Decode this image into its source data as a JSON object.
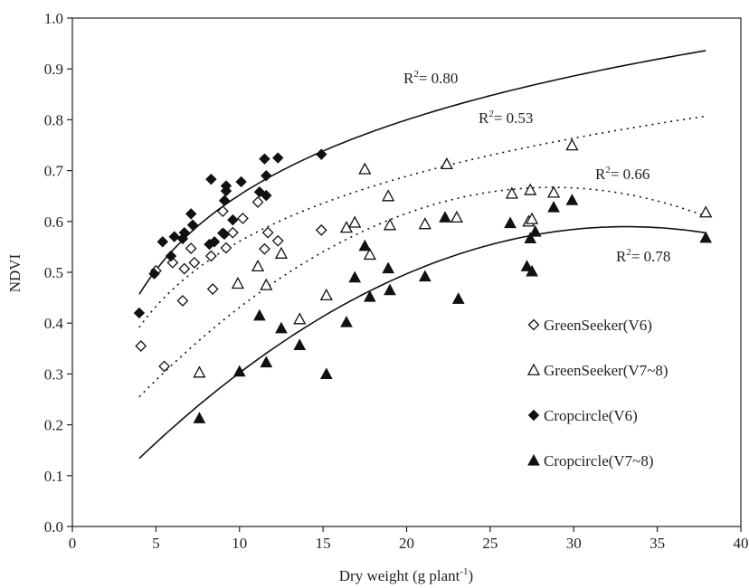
{
  "chart_data": {
    "type": "scatter",
    "xlabel": "Dry weight (g plant",
    "xlabel_sup": "-1",
    "xlabel_close": ")",
    "ylabel": "NDVI",
    "xlim": [
      0,
      40
    ],
    "ylim": [
      0.0,
      1.0
    ],
    "xticks": [
      "0",
      "5",
      "10",
      "15",
      "20",
      "25",
      "30",
      "35",
      "40"
    ],
    "yticks": [
      "0.0",
      "0.1",
      "0.2",
      "0.3",
      "0.4",
      "0.5",
      "0.6",
      "0.7",
      "0.8",
      "0.9",
      "1.0"
    ],
    "grid": false,
    "legend_position": "right",
    "series": [
      {
        "name": "GreenSeeker(V6)",
        "marker": "diamond-open",
        "points": [
          [
            4.1,
            0.355
          ],
          [
            5.0,
            0.503
          ],
          [
            5.5,
            0.315
          ],
          [
            6.0,
            0.519
          ],
          [
            6.6,
            0.444
          ],
          [
            6.7,
            0.507
          ],
          [
            7.1,
            0.547
          ],
          [
            7.3,
            0.519
          ],
          [
            8.3,
            0.532
          ],
          [
            8.4,
            0.467
          ],
          [
            9.0,
            0.62
          ],
          [
            9.2,
            0.548
          ],
          [
            9.6,
            0.578
          ],
          [
            10.2,
            0.606
          ],
          [
            11.1,
            0.638
          ],
          [
            11.5,
            0.546
          ],
          [
            11.7,
            0.578
          ],
          [
            12.3,
            0.562
          ],
          [
            14.9,
            0.583
          ]
        ],
        "fit": {
          "r2_label": "R",
          "r2_sup": "2",
          "r2_value": "= 0.53"
        }
      },
      {
        "name": "GreenSeeker(V7~8)",
        "marker": "triangle-open",
        "points": [
          [
            7.6,
            0.303
          ],
          [
            9.9,
            0.478
          ],
          [
            11.1,
            0.512
          ],
          [
            11.6,
            0.475
          ],
          [
            12.5,
            0.537
          ],
          [
            13.6,
            0.408
          ],
          [
            15.2,
            0.455
          ],
          [
            16.4,
            0.588
          ],
          [
            16.9,
            0.598
          ],
          [
            17.5,
            0.703
          ],
          [
            17.8,
            0.535
          ],
          [
            18.9,
            0.65
          ],
          [
            19.0,
            0.593
          ],
          [
            21.1,
            0.595
          ],
          [
            22.4,
            0.713
          ],
          [
            23.0,
            0.608
          ],
          [
            26.3,
            0.655
          ],
          [
            27.3,
            0.6
          ],
          [
            27.4,
            0.662
          ],
          [
            27.5,
            0.605
          ],
          [
            28.8,
            0.657
          ],
          [
            29.9,
            0.75
          ],
          [
            37.9,
            0.618
          ]
        ],
        "fit": {
          "r2_label": "R",
          "r2_sup": "2",
          "r2_value": "= 0.66"
        }
      },
      {
        "name": "Cropcircle(V6)",
        "marker": "diamond-filled",
        "points": [
          [
            4.0,
            0.42
          ],
          [
            4.9,
            0.497
          ],
          [
            5.4,
            0.56
          ],
          [
            5.9,
            0.532
          ],
          [
            6.1,
            0.57
          ],
          [
            6.6,
            0.566
          ],
          [
            6.7,
            0.578
          ],
          [
            7.1,
            0.615
          ],
          [
            7.2,
            0.593
          ],
          [
            8.2,
            0.555
          ],
          [
            8.3,
            0.683
          ],
          [
            8.5,
            0.56
          ],
          [
            9.0,
            0.577
          ],
          [
            9.1,
            0.575
          ],
          [
            9.1,
            0.641
          ],
          [
            9.2,
            0.67
          ],
          [
            9.2,
            0.66
          ],
          [
            9.6,
            0.603
          ],
          [
            10.1,
            0.678
          ],
          [
            11.2,
            0.658
          ],
          [
            11.5,
            0.723
          ],
          [
            11.6,
            0.69
          ],
          [
            11.6,
            0.651
          ],
          [
            12.3,
            0.725
          ],
          [
            14.9,
            0.732
          ]
        ],
        "fit": {
          "r2_label": "R",
          "r2_sup": "2",
          "r2_value": "= 0.80"
        }
      },
      {
        "name": "Cropcircle(V7~8)",
        "marker": "triangle-filled",
        "points": [
          [
            7.6,
            0.213
          ],
          [
            10.0,
            0.305
          ],
          [
            11.2,
            0.415
          ],
          [
            11.6,
            0.323
          ],
          [
            12.5,
            0.39
          ],
          [
            13.6,
            0.357
          ],
          [
            15.2,
            0.3
          ],
          [
            16.4,
            0.402
          ],
          [
            16.9,
            0.49
          ],
          [
            17.5,
            0.552
          ],
          [
            17.8,
            0.452
          ],
          [
            18.9,
            0.508
          ],
          [
            19.0,
            0.465
          ],
          [
            21.1,
            0.492
          ],
          [
            22.3,
            0.608
          ],
          [
            23.1,
            0.448
          ],
          [
            26.2,
            0.597
          ],
          [
            27.2,
            0.512
          ],
          [
            27.4,
            0.567
          ],
          [
            27.5,
            0.502
          ],
          [
            27.7,
            0.58
          ],
          [
            28.8,
            0.628
          ],
          [
            29.9,
            0.642
          ],
          [
            37.9,
            0.568
          ]
        ],
        "fit": {
          "r2_label": "R",
          "r2_sup": "2",
          "r2_value": "= 0.78"
        }
      }
    ]
  }
}
